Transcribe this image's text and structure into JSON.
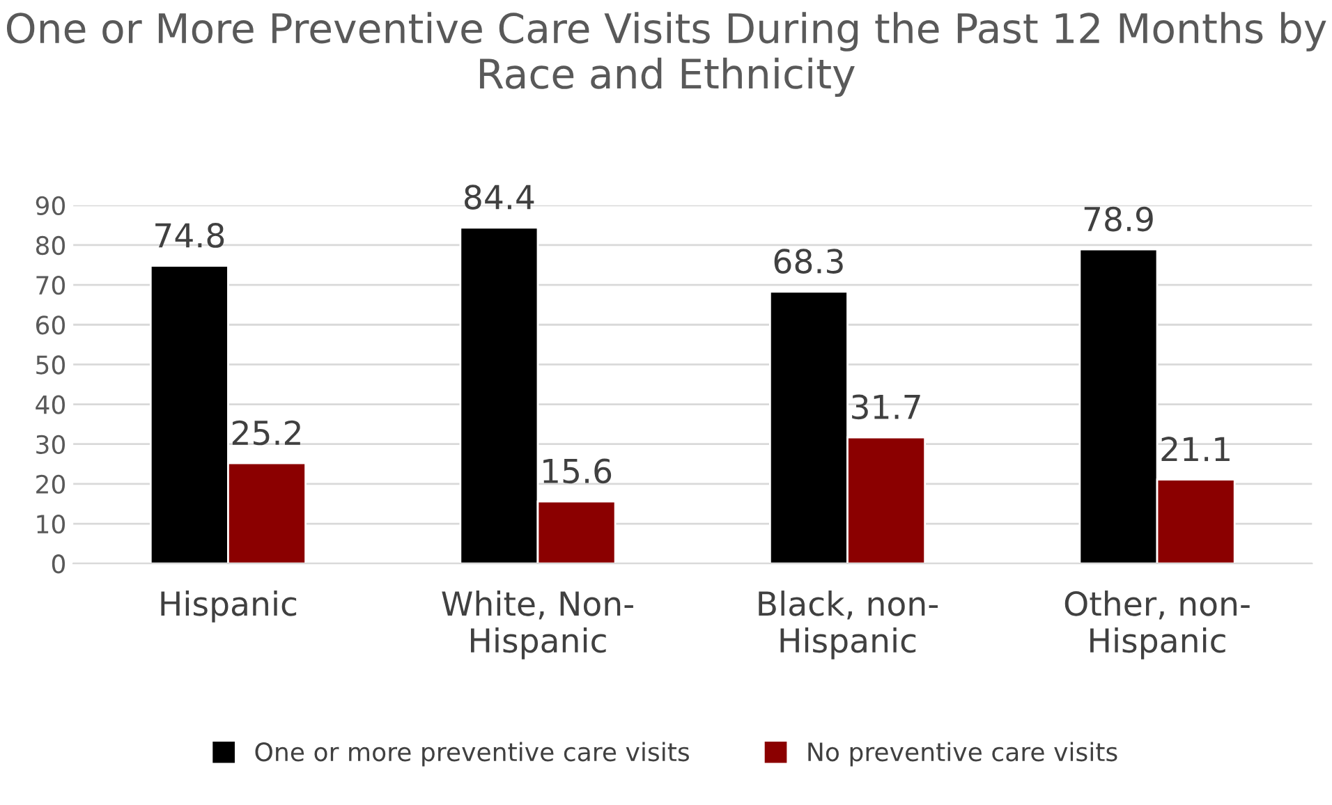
{
  "chart_data": {
    "type": "bar",
    "title": "One or More Preventive Care Visits During the Past 12 Months by Race and Ethnicity",
    "categories": [
      "Hispanic",
      "White, Non-Hispanic",
      "Black, non-Hispanic",
      "Other, non-Hispanic"
    ],
    "series": [
      {
        "name": "One or more preventive care visits",
        "color": "#000000",
        "values": [
          74.8,
          84.4,
          68.3,
          78.9
        ]
      },
      {
        "name": "No preventive care visits",
        "color": "#8b0000",
        "values": [
          25.2,
          15.6,
          31.7,
          21.1
        ]
      }
    ],
    "ylim": [
      0,
      90
    ],
    "yticks": [
      0,
      10,
      20,
      30,
      40,
      50,
      60,
      70,
      80,
      90
    ],
    "grid": "y",
    "legend": "bottom",
    "data_labels": true
  }
}
